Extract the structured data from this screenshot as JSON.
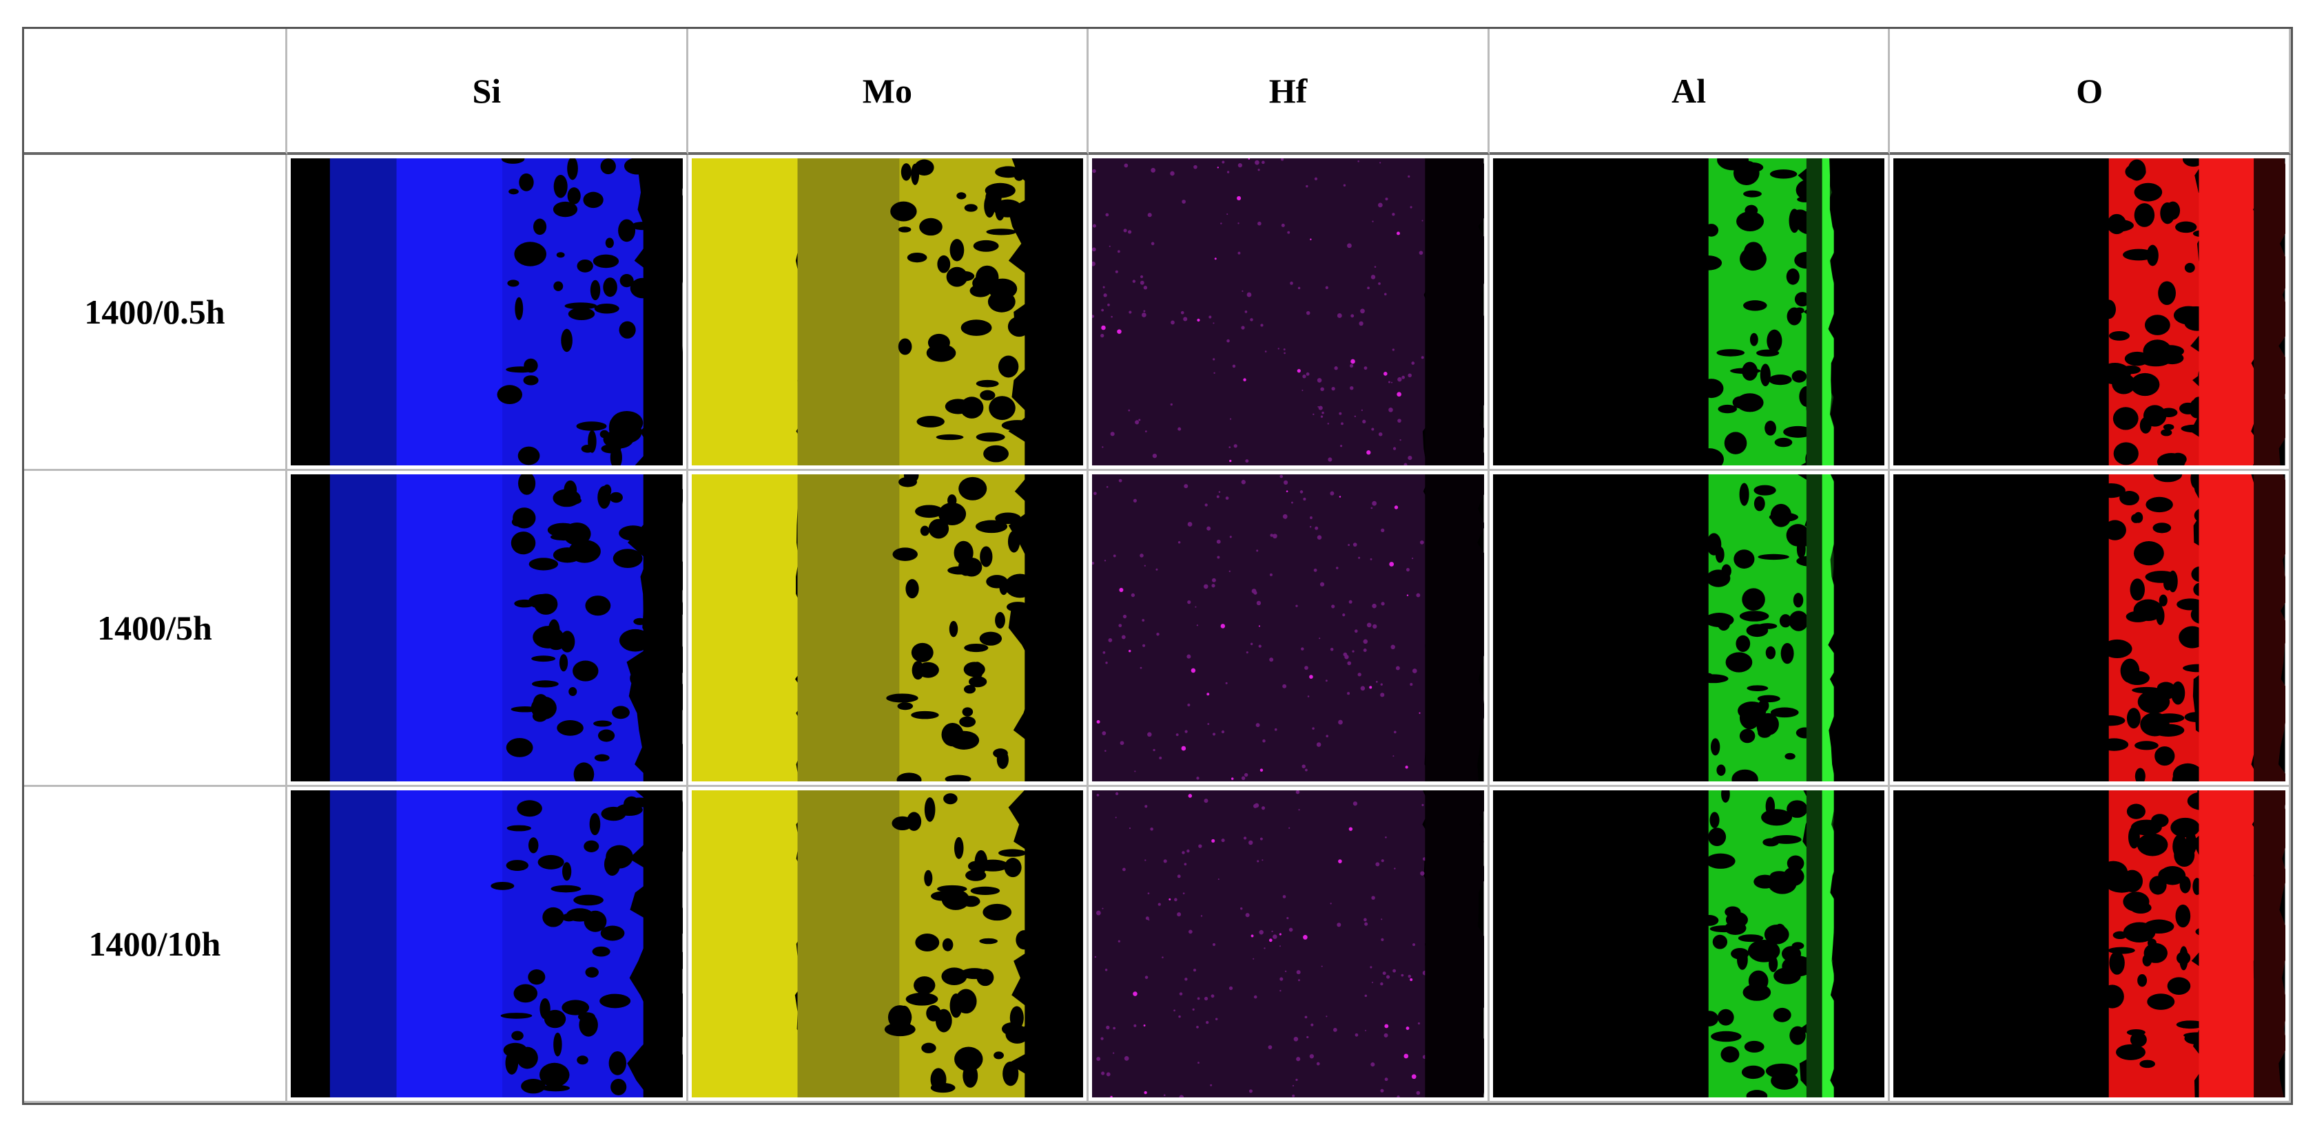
{
  "table": {
    "header": [
      "Si",
      "Mo",
      "Hf",
      "Al",
      "O"
    ],
    "rows": [
      "1400/0.5h",
      "1400/5h",
      "1400/10h"
    ]
  }
}
